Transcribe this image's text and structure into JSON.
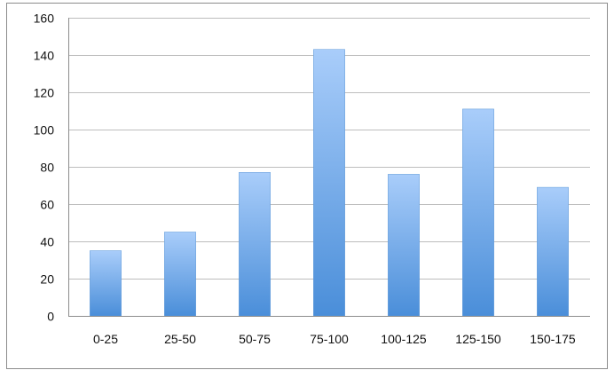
{
  "chart_data": {
    "type": "bar",
    "title": "",
    "xlabel": "",
    "ylabel": "",
    "categories": [
      "0-25",
      "25-50",
      "50-75",
      "75-100",
      "100-125",
      "125-150",
      "150-175"
    ],
    "values": [
      35,
      45,
      77,
      143,
      76,
      111,
      69
    ],
    "ylim": [
      0,
      160
    ],
    "yticks": [
      "0",
      "20",
      "40",
      "60",
      "80",
      "100",
      "120",
      "140",
      "160"
    ],
    "grid": true,
    "legend": "none",
    "colors": {
      "bar_top": "#a9cdfa",
      "bar_bottom": "#4a8ed9",
      "bar_edge": "#5b97d6",
      "grid": "#bdbdbd",
      "axis": "#8c8c8c",
      "text": "#111111"
    }
  }
}
